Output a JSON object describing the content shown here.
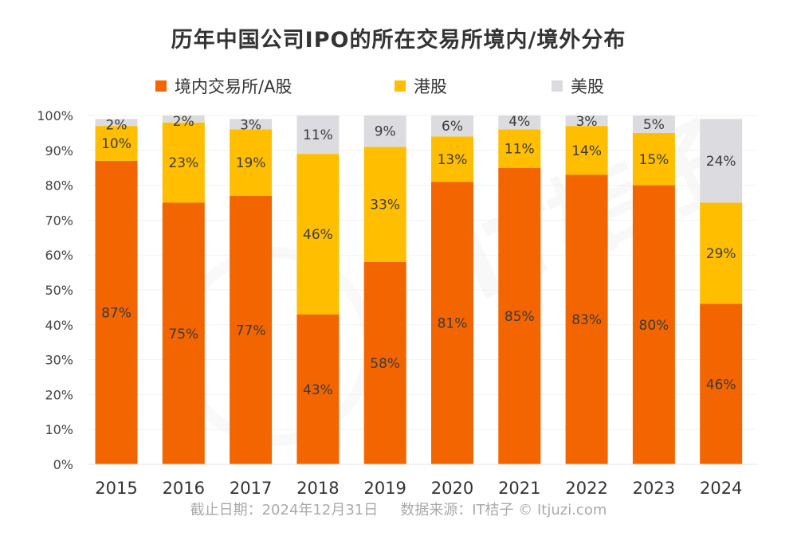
{
  "chart_data": {
    "type": "bar",
    "stacked": true,
    "title": "历年中国公司IPO的所在交易所境内/境外分布",
    "xlabel": "",
    "ylabel": "",
    "ylim": [
      0,
      100
    ],
    "yticks": [
      "0%",
      "10%",
      "20%",
      "30%",
      "40%",
      "50%",
      "60%",
      "70%",
      "80%",
      "90%",
      "100%"
    ],
    "grid": true,
    "legend_position": "top",
    "categories": [
      "2015",
      "2016",
      "2017",
      "2018",
      "2019",
      "2020",
      "2021",
      "2022",
      "2023",
      "2024"
    ],
    "series": [
      {
        "name": "境内交易所/A股",
        "color": "#F26500",
        "values": [
          87,
          75,
          77,
          43,
          58,
          81,
          85,
          83,
          80,
          46
        ]
      },
      {
        "name": "港股",
        "color": "#FFBF00",
        "values": [
          10,
          23,
          19,
          46,
          33,
          13,
          11,
          14,
          15,
          29
        ]
      },
      {
        "name": "美股",
        "color": "#DCDCE0",
        "values": [
          2,
          2,
          3,
          11,
          9,
          6,
          4,
          3,
          5,
          24
        ]
      }
    ],
    "value_label_suffix": "%"
  },
  "footnote": {
    "date": "截止日期：2024年12月31日",
    "source": "数据来源：IT桔子 © Itjuzi.com"
  },
  "watermark": "IT桔子 ITJUZI.COM"
}
